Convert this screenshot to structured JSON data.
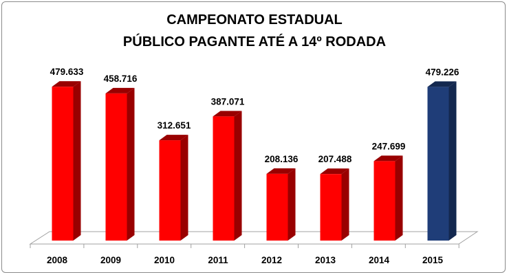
{
  "chart_data": {
    "type": "bar",
    "title": "CAMPEONATO ESTADUAL",
    "subtitle": "PÚBLICO PAGANTE ATÉ A 14º RODADA",
    "categories": [
      "2008",
      "2009",
      "2010",
      "2011",
      "2012",
      "2013",
      "2014",
      "2015"
    ],
    "values": [
      479633,
      458716,
      312651,
      387071,
      208136,
      207488,
      247699,
      479226
    ],
    "data_labels": [
      "479.633",
      "458.716",
      "312.651",
      "387.071",
      "208.136",
      "207.488",
      "247.699",
      "479.226"
    ],
    "xlabel": "",
    "ylabel": "",
    "ylim": [
      0,
      480000
    ],
    "grid": false,
    "legend": "none",
    "style": "3d-column",
    "colors": {
      "default": "#ff0000",
      "default_side": "#990000",
      "highlight": "#1f3d78",
      "highlight_side": "#13284f",
      "highlight_category": "2015"
    }
  }
}
